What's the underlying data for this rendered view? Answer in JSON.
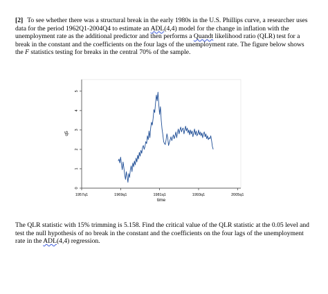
{
  "question": {
    "number": "[2]",
    "intro": "To see whether there was a structural break in the early 1980s in the U.S. Phillips curve, a researcher uses data for the period 1962Q1-2004Q4 to estimate an ",
    "model1": "ADL",
    "model1_tail": "(4,4) model for the change in inflation with the unemployment rate as the additional predictor and then performs a ",
    "quandt": "Quandt",
    "mid": " likelihood ratio (QLR) test for a break in the constant and the coefficients on the four lags of the unemployment rate. The figure below shows the ",
    "fstat": "F",
    "end": " statistics testing for breaks in the central 70% of the sample.",
    "follow_start": "The QLR statistic with 15% trimming is 5.158. Find the critical value of the QLR statistic at the 0.05 level and test the null hypothesis of no break in the constant and the coefficients on the four lags of the unemployment rate in the ",
    "model2": "ADL",
    "follow_end": "(4,4) regression."
  },
  "chart_data": {
    "type": "line",
    "xlabel": "time",
    "ylabel": "q5",
    "xlim": [
      1957,
      2006
    ],
    "ylim": [
      0,
      5
    ],
    "x_ticks": [
      {
        "value": 1957,
        "label": "1957q1"
      },
      {
        "value": 1969,
        "label": "1969q1"
      },
      {
        "value": 1981,
        "label": "1981q1"
      },
      {
        "value": 1993,
        "label": "1993q1"
      },
      {
        "value": 2005,
        "label": "2005q1"
      }
    ],
    "y_ticks": [
      {
        "value": 0,
        "label": "0"
      },
      {
        "value": 1,
        "label": "1"
      },
      {
        "value": 2,
        "label": "2"
      },
      {
        "value": 3,
        "label": "3"
      },
      {
        "value": 4,
        "label": "4"
      },
      {
        "value": 5,
        "label": "5"
      }
    ],
    "grid": false,
    "legend": "none",
    "line_color": "#1f4e96",
    "series": [
      {
        "x": [
          1968.25,
          1968.5,
          1968.75,
          1969.0,
          1969.25,
          1969.5,
          1969.75,
          1970.0,
          1970.25,
          1970.5,
          1970.75,
          1971.0,
          1971.25,
          1971.5,
          1971.75,
          1972.0,
          1972.25,
          1972.5,
          1972.75,
          1973.0,
          1973.25,
          1973.5,
          1973.75,
          1974.0,
          1974.25,
          1974.5,
          1974.75,
          1975.0,
          1975.25,
          1975.5,
          1975.75,
          1976.0,
          1976.25,
          1976.5,
          1976.75,
          1977.0,
          1977.25,
          1977.5,
          1977.75,
          1978.0,
          1978.25,
          1978.5,
          1978.75,
          1979.0,
          1979.25,
          1979.5,
          1979.75,
          1980.0,
          1980.25,
          1980.5,
          1980.75,
          1981.0,
          1981.25,
          1981.5,
          1981.75,
          1982.0,
          1982.25,
          1982.5,
          1982.75,
          1983.0,
          1983.25,
          1983.5,
          1983.75,
          1984.0,
          1984.25,
          1984.5,
          1984.75,
          1985.0,
          1985.25,
          1985.5,
          1985.75,
          1986.0,
          1986.25,
          1986.5,
          1986.75,
          1987.0,
          1987.25,
          1987.5,
          1987.75,
          1988.0,
          1988.25,
          1988.5,
          1988.75,
          1989.0,
          1989.25,
          1989.5,
          1989.75,
          1990.0,
          1990.25,
          1990.5,
          1990.75,
          1991.0,
          1991.25,
          1991.5,
          1991.75,
          1992.0,
          1992.25,
          1992.5,
          1992.75,
          1993.0,
          1993.25,
          1993.5,
          1993.75,
          1994.0,
          1994.25,
          1994.5,
          1994.75,
          1995.0,
          1995.25,
          1995.5,
          1995.75,
          1996.0,
          1996.25,
          1996.5,
          1996.75,
          1997.0,
          1997.25,
          1997.5
        ],
        "y": [
          1.4,
          1.5,
          1.3,
          1.6,
          1.25,
          0.95,
          1.35,
          1.05,
          0.7,
          0.45,
          0.85,
          0.6,
          0.3,
          0.75,
          0.55,
          0.95,
          1.15,
          0.85,
          1.3,
          1.1,
          1.4,
          1.2,
          1.55,
          1.35,
          1.7,
          1.5,
          1.85,
          1.65,
          1.95,
          1.8,
          2.1,
          2.2,
          2.0,
          2.15,
          2.4,
          2.3,
          2.7,
          2.5,
          2.95,
          2.6,
          3.1,
          3.4,
          3.25,
          3.6,
          4.05,
          3.9,
          4.4,
          4.8,
          4.5,
          4.95,
          4.3,
          3.8,
          4.2,
          3.5,
          3.05,
          2.75,
          2.4,
          2.3,
          2.25,
          2.5,
          2.8,
          2.6,
          2.2,
          2.35,
          2.5,
          2.65,
          2.45,
          2.6,
          2.75,
          2.55,
          2.7,
          2.9,
          2.6,
          2.85,
          3.05,
          2.8,
          3.0,
          3.15,
          2.9,
          3.05,
          3.1,
          2.8,
          3.0,
          3.2,
          2.95,
          3.1,
          2.85,
          3.0,
          2.75,
          3.0,
          2.8,
          2.95,
          2.65,
          2.85,
          3.05,
          2.75,
          2.95,
          2.7,
          2.8,
          3.0,
          2.75,
          2.9,
          2.7,
          2.85,
          2.6,
          2.8,
          2.9,
          2.65,
          2.8,
          2.55,
          2.7,
          2.5,
          2.6,
          2.55,
          2.7,
          2.45,
          2.15,
          2.0
        ]
      }
    ]
  }
}
